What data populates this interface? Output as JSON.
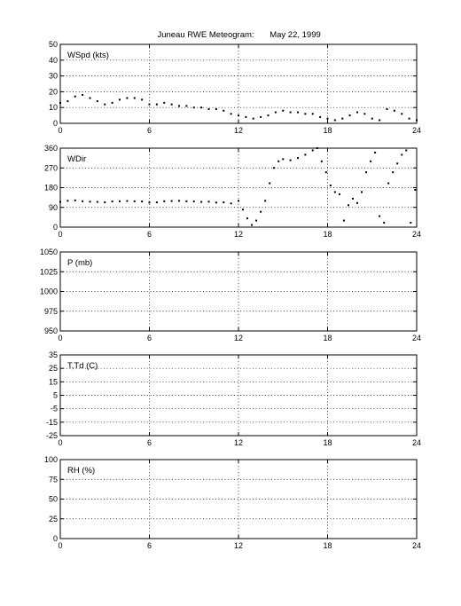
{
  "title": {
    "left": "Juneau RWE Meteogram:",
    "right": "May 22, 1999"
  },
  "chart_data": [
    {
      "type": "scatter",
      "label": "WSpd (kts)",
      "xlim": [
        0,
        24
      ],
      "xticks": [
        "0",
        "6",
        "12",
        "18",
        "24"
      ],
      "ylim": [
        0,
        50
      ],
      "yticks": [
        "0",
        "10",
        "20",
        "30",
        "40",
        "50"
      ],
      "grid": true,
      "series": [
        {
          "x": [
            0,
            0.5,
            1,
            1.5,
            2,
            2.5,
            3,
            3.5,
            4,
            4.5,
            5,
            5.5,
            6,
            6.5,
            7,
            7.5,
            8,
            8.5,
            9,
            9.5,
            10,
            10.5,
            11,
            11.5,
            12,
            12.5,
            13,
            13.5,
            14,
            14.5,
            15,
            15.5,
            16,
            16.5,
            17,
            17.5,
            18,
            18.5,
            19,
            19.5,
            20,
            20.5,
            21,
            21.5,
            22,
            22.5,
            23,
            23.5,
            24
          ],
          "y": [
            13,
            14,
            17,
            18,
            16,
            14,
            12,
            13,
            15,
            16,
            16,
            15,
            12,
            12,
            13,
            12,
            11,
            11,
            10,
            10,
            9,
            9,
            8,
            6,
            5,
            4,
            3,
            4,
            5,
            7,
            8,
            7,
            7,
            6,
            6,
            4,
            3,
            2,
            3,
            5,
            7,
            6,
            3,
            2,
            9,
            8,
            6,
            3,
            2
          ]
        }
      ]
    },
    {
      "type": "scatter",
      "label": "WDir",
      "xlim": [
        0,
        24
      ],
      "xticks": [
        "0",
        "6",
        "12",
        "18",
        "24"
      ],
      "ylim": [
        0,
        360
      ],
      "yticks": [
        "0",
        "90",
        "180",
        "270",
        "360"
      ],
      "grid": true,
      "series": [
        {
          "x": [
            0,
            0.5,
            1,
            1.5,
            2,
            2.5,
            3,
            3.5,
            4,
            4.5,
            5,
            5.5,
            6,
            6.5,
            7,
            7.5,
            8,
            8.5,
            9,
            9.5,
            10,
            10.5,
            11,
            11.5,
            12,
            12.3,
            12.6,
            12.9,
            13.2,
            13.5,
            13.8,
            14.1,
            14.4,
            14.7,
            15,
            15.5,
            16,
            16.5,
            17,
            17.3,
            17.6,
            17.9,
            18.2,
            18.5,
            18.8,
            19.1,
            19.4,
            19.7,
            20,
            20.3,
            20.6,
            20.9,
            21.2,
            21.5,
            21.8,
            22.1,
            22.4,
            22.7,
            23,
            23.3,
            23.6,
            23.9
          ],
          "y": [
            115,
            120,
            122,
            118,
            116,
            115,
            113,
            117,
            118,
            119,
            118,
            117,
            112,
            113,
            118,
            119,
            120,
            118,
            117,
            115,
            116,
            112,
            113,
            108,
            120,
            80,
            40,
            10,
            30,
            70,
            120,
            200,
            270,
            300,
            310,
            305,
            315,
            330,
            350,
            360,
            300,
            250,
            190,
            160,
            150,
            30,
            100,
            130,
            110,
            160,
            250,
            300,
            340,
            50,
            20,
            200,
            250,
            290,
            330,
            350,
            20,
            170
          ]
        }
      ]
    },
    {
      "type": "scatter",
      "label": "P (mb)",
      "xlim": [
        0,
        24
      ],
      "xticks": [
        "0",
        "6",
        "12",
        "18",
        "24"
      ],
      "ylim": [
        950,
        1050
      ],
      "yticks": [
        "950",
        "975",
        "1000",
        "1025",
        "1050"
      ],
      "grid": true,
      "series": []
    },
    {
      "type": "scatter",
      "label": "T,Td (C)",
      "xlim": [
        0,
        24
      ],
      "xticks": [
        "0",
        "6",
        "12",
        "18",
        "24"
      ],
      "ylim": [
        -25,
        35
      ],
      "yticks": [
        "-25",
        "-15",
        "-5",
        "5",
        "15",
        "25",
        "35"
      ],
      "grid": true,
      "series": []
    },
    {
      "type": "scatter",
      "label": "RH (%)",
      "xlim": [
        0,
        24
      ],
      "xticks": [
        "0",
        "6",
        "12",
        "18",
        "24"
      ],
      "ylim": [
        0,
        100
      ],
      "yticks": [
        "0",
        "25",
        "50",
        "75",
        "100"
      ],
      "grid": true,
      "series": []
    }
  ]
}
